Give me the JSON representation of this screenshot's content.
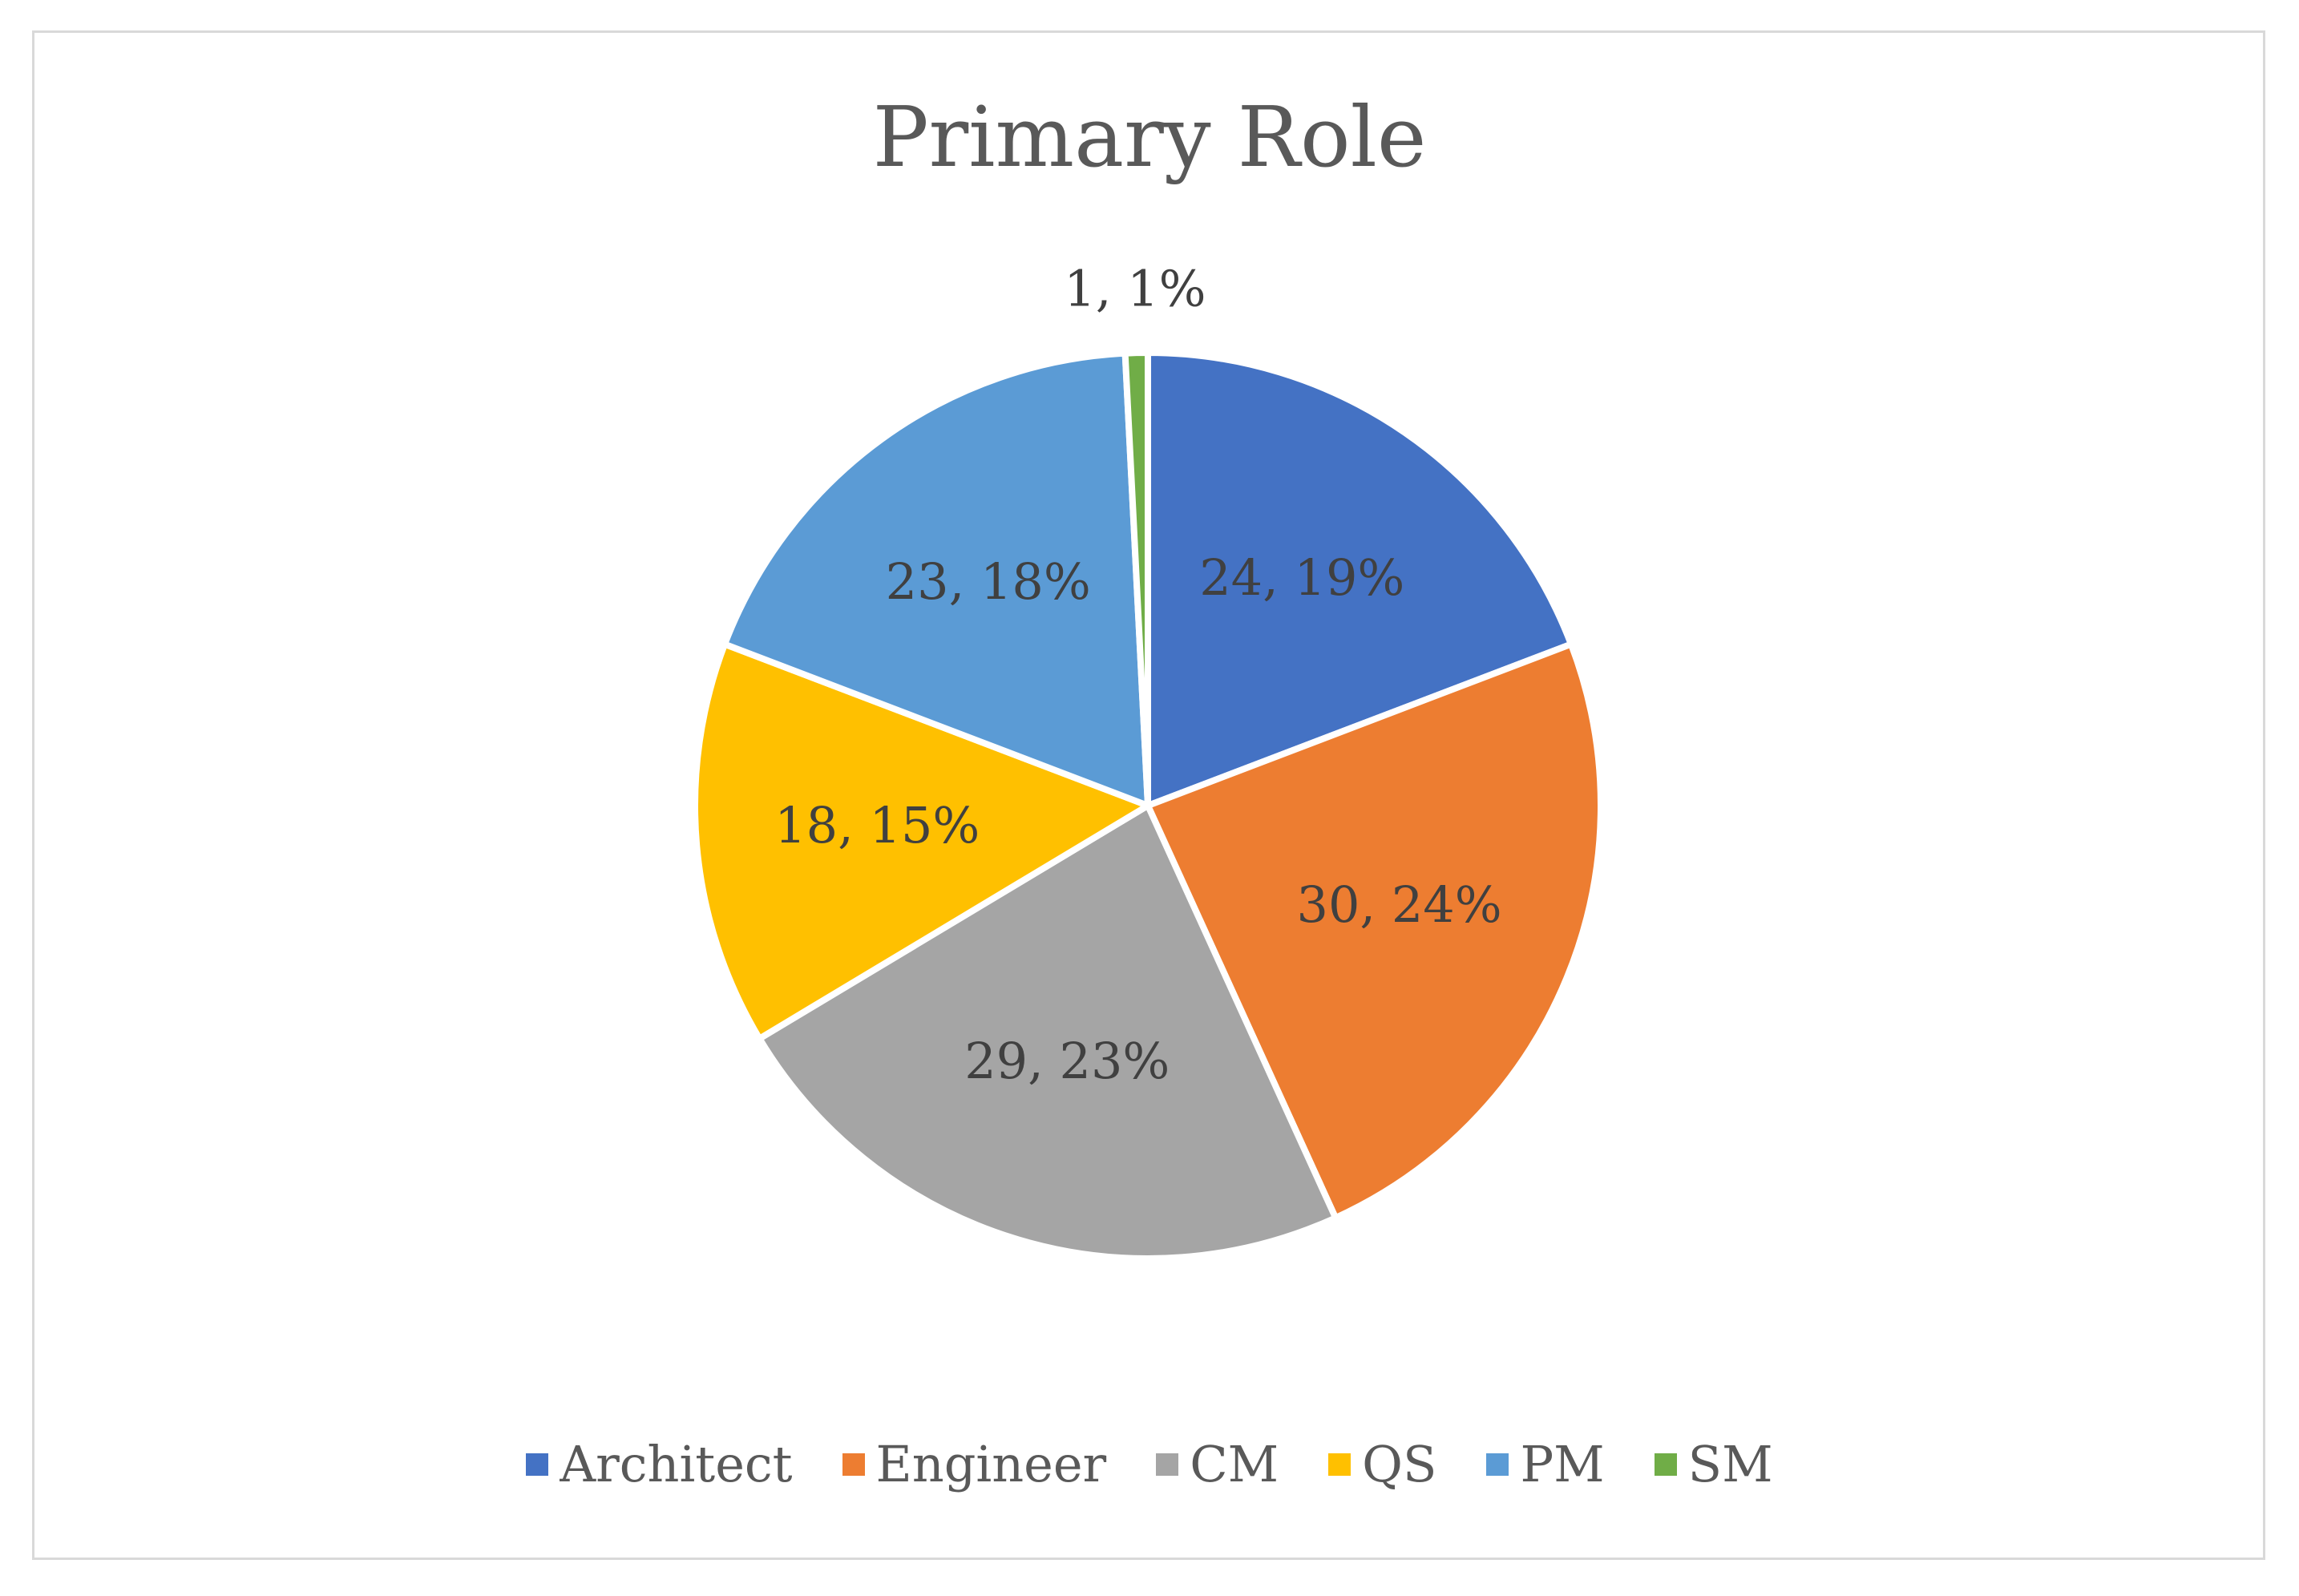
{
  "chart_data": {
    "type": "pie",
    "title": "Primary Role",
    "categories": [
      "Architect",
      "Engineer",
      "CM",
      "QS",
      "PM",
      "SM"
    ],
    "values": [
      24,
      30,
      29,
      18,
      23,
      1
    ],
    "percentages": [
      19,
      24,
      23,
      15,
      18,
      1
    ],
    "labels": [
      "24, 19%",
      "30, 24%",
      "29, 23%",
      "18, 15%",
      "23, 18%",
      "1, 1%"
    ],
    "colors": [
      "#4472c4",
      "#ed7d31",
      "#a5a5a5",
      "#ffc000",
      "#5b9bd5",
      "#70ad47"
    ],
    "start_angle": "top, clockwise",
    "legend_position": "bottom"
  },
  "legend": {
    "items": [
      {
        "label": "Architect",
        "color": "#4472c4"
      },
      {
        "label": "Engineer",
        "color": "#ed7d31"
      },
      {
        "label": "CM",
        "color": "#a5a5a5"
      },
      {
        "label": "QS",
        "color": "#ffc000"
      },
      {
        "label": "PM",
        "color": "#5b9bd5"
      },
      {
        "label": "SM",
        "color": "#70ad47"
      }
    ]
  }
}
